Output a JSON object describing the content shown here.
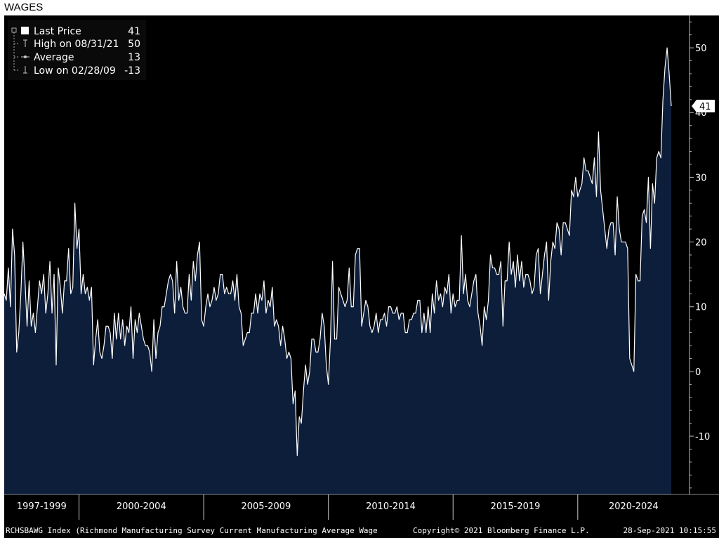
{
  "title": "WAGES",
  "legend": [
    {
      "icon": "square-icon",
      "label": "Last Price",
      "value": "41"
    },
    {
      "icon": "high-marker-icon",
      "label": "High on 08/31/21",
      "value": "50"
    },
    {
      "icon": "average-marker-icon",
      "label": "Average",
      "value": "13"
    },
    {
      "icon": "low-marker-icon",
      "label": "Low on 02/28/09",
      "value": "-13"
    }
  ],
  "footer": {
    "left": "RCHSBAWG Index (Richmond Manufacturing Survey Current Manufacturing Average Wage",
    "center": "Copyright© 2021 Bloomberg Finance L.P.",
    "right": "28-Sep-2021 10:15:55"
  },
  "colors": {
    "background": "#000000",
    "fill": "#0d1e3b",
    "line": "#ffffff",
    "tag": "#ffffff"
  },
  "chart_data": {
    "type": "area",
    "title": "WAGES",
    "ylim": [
      -19,
      55
    ],
    "yticks": [
      -10,
      0,
      10,
      20,
      30,
      40,
      50
    ],
    "period_labels": [
      "1997-1999",
      "2000-2004",
      "2005-2009",
      "2010-2014",
      "2015-2019",
      "2020-2024"
    ],
    "x_start": "1997-01",
    "frequency": "monthly",
    "last_value": 41,
    "grid": false,
    "legend_position": "top-left",
    "values": [
      12,
      11,
      16,
      10,
      22,
      18,
      3,
      6,
      12,
      20,
      14,
      7,
      14,
      7,
      9,
      6,
      10,
      14,
      12,
      15,
      9,
      12,
      17,
      9,
      15,
      1,
      16,
      13,
      9,
      14,
      14,
      19,
      12,
      13,
      26,
      19,
      22,
      12,
      15,
      12,
      13,
      11,
      13,
      1,
      5,
      8,
      3,
      2,
      4,
      7,
      7,
      6,
      2,
      9,
      5,
      9,
      5,
      8,
      4,
      7,
      6,
      10,
      2,
      8,
      6,
      9,
      7,
      5,
      4,
      4,
      3,
      0,
      8,
      2,
      6,
      7,
      10,
      10,
      12,
      14,
      15,
      14,
      9,
      17,
      11,
      13,
      10,
      9,
      9,
      15,
      11,
      17,
      14,
      18,
      20,
      8,
      7,
      10,
      12,
      10,
      11,
      13,
      11,
      12,
      15,
      15,
      12,
      13,
      12,
      12,
      14,
      11,
      15,
      10,
      9,
      4,
      5,
      6,
      6,
      9,
      9,
      12,
      9,
      12,
      11,
      14,
      9,
      11,
      10,
      13,
      7,
      8,
      7,
      4,
      7,
      5,
      2,
      3,
      2,
      -5,
      -3,
      -13,
      -7,
      -8,
      -3,
      1,
      -2,
      0,
      5,
      5,
      3,
      3,
      5,
      9,
      7,
      1,
      -2,
      5,
      17,
      5,
      5,
      13,
      12,
      11,
      10,
      11,
      16,
      10,
      10,
      18,
      19,
      19,
      7,
      9,
      11,
      10,
      7,
      6,
      7,
      9,
      6,
      8,
      8,
      9,
      7,
      10,
      10,
      9,
      9,
      10,
      8,
      9,
      9,
      6,
      6,
      8,
      8,
      9,
      9,
      11,
      11,
      6,
      9,
      6,
      10,
      6,
      12,
      9,
      14,
      11,
      12,
      10,
      13,
      12,
      15,
      9,
      12,
      10,
      11,
      11,
      21,
      12,
      15,
      11,
      10,
      12,
      14,
      15,
      9,
      7,
      4,
      10,
      8,
      11,
      18,
      16,
      16,
      15,
      15,
      17,
      7,
      14,
      14,
      20,
      15,
      17,
      13,
      18,
      14,
      17,
      13,
      15,
      15,
      14,
      12,
      13,
      18,
      19,
      12,
      15,
      18,
      20,
      11,
      17,
      20,
      19,
      23,
      22,
      18,
      23,
      23,
      22,
      21,
      28,
      27,
      30,
      27,
      28,
      29,
      33,
      31,
      31,
      30,
      29,
      33,
      27,
      37,
      28,
      25,
      22,
      19,
      22,
      23,
      23,
      18,
      27,
      22,
      20,
      20,
      20,
      19,
      2,
      1,
      0,
      15,
      14,
      14,
      24,
      25,
      23,
      30,
      19,
      29,
      26,
      33,
      34,
      33,
      42,
      47,
      50,
      46,
      41
    ]
  }
}
